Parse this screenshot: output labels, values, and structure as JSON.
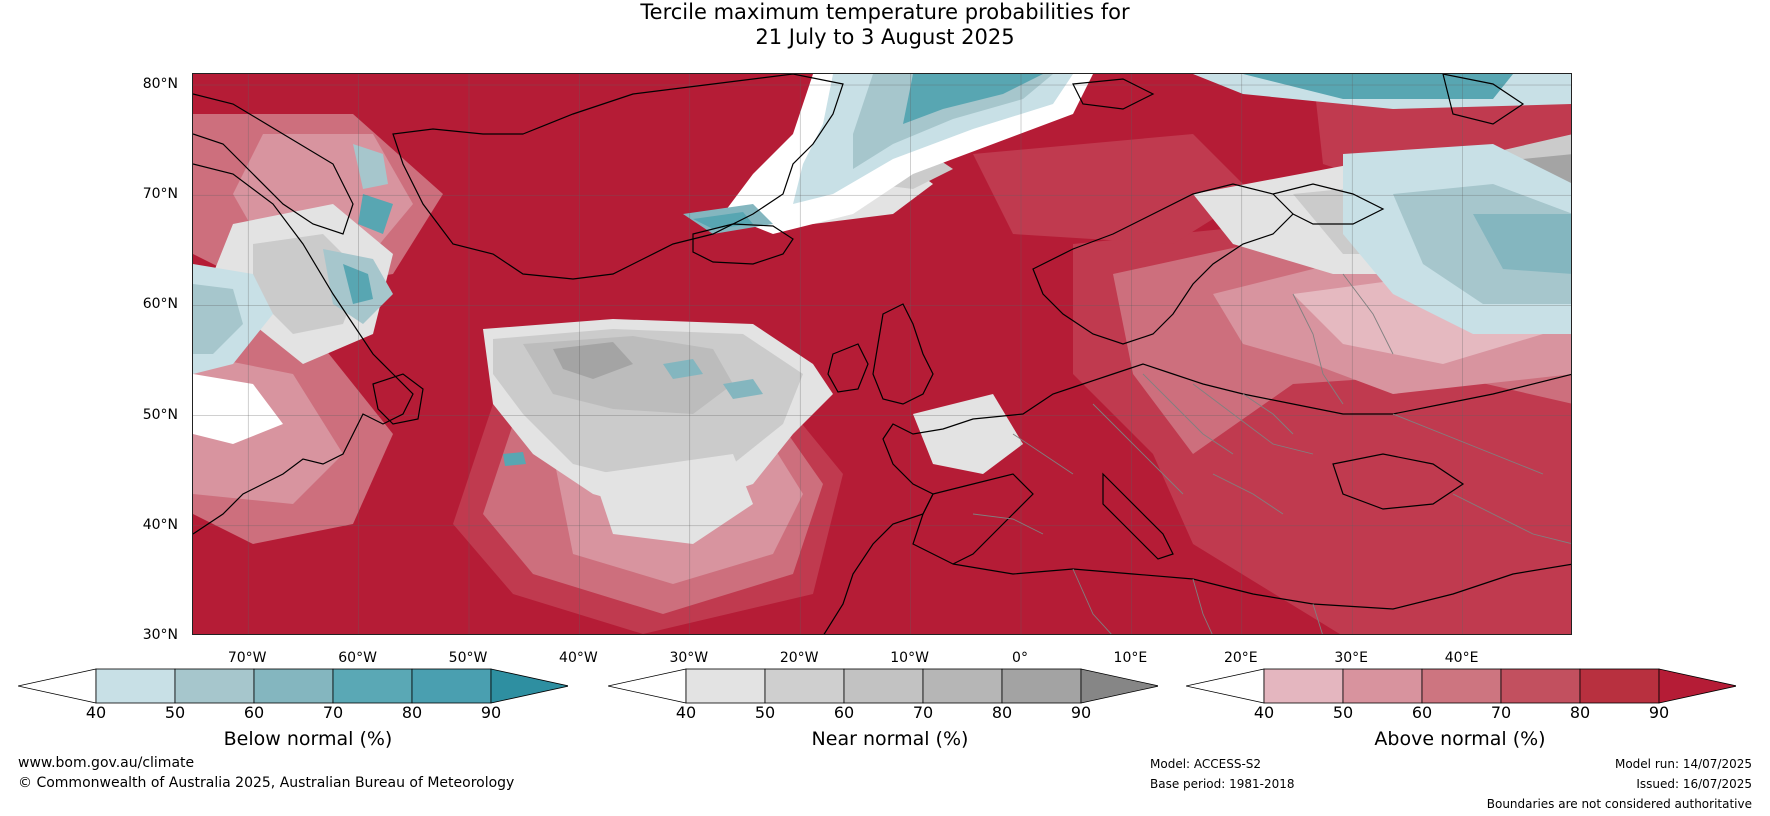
{
  "title_line1": "Tercile maximum temperature probabilities for",
  "title_line2": "21 July to 3 August 2025",
  "map": {
    "lat_labels": [
      "80°N",
      "70°N",
      "60°N",
      "50°N",
      "40°N",
      "30°N"
    ],
    "lon_labels": [
      "70°W",
      "60°W",
      "50°W",
      "40°W",
      "30°W",
      "20°W",
      "10°W",
      "0°",
      "10°E",
      "20°E",
      "30°E",
      "40°E"
    ],
    "lat_range": [
      30,
      81
    ],
    "lon_range": [
      -75,
      50
    ],
    "colors": {
      "above_90": "#b51c36",
      "above_80": "#c03a4f",
      "above_70": "#cd6f7d",
      "above_60": "#d8949f",
      "above_50": "#e5b9c0",
      "neutral": "#ffffff",
      "near_50": "#e3e3e3",
      "near_60": "#cbcbcb",
      "near_70": "#bcbcbc",
      "near_80": "#a4a4a4",
      "below_50": "#c8e0e6",
      "below_60": "#a6c6cc",
      "below_70": "#84b6bf",
      "below_80": "#58a6b2",
      "below_90": "#2e8fa1",
      "coastline": "#000000",
      "borders": "#808080"
    }
  },
  "legends": [
    {
      "name": "Below normal (%)",
      "ticks": [
        "40",
        "50",
        "60",
        "70",
        "80",
        "90"
      ],
      "colors": [
        "#ffffff",
        "#c8e0e6",
        "#a6c6cc",
        "#84b6bf",
        "#5aa8b5",
        "#4a9fb0",
        "#2e8fa1"
      ]
    },
    {
      "name": "Near normal (%)",
      "ticks": [
        "40",
        "50",
        "60",
        "70",
        "80",
        "90"
      ],
      "colors": [
        "#ffffff",
        "#e3e3e3",
        "#cfcfcf",
        "#c2c2c2",
        "#b6b6b6",
        "#a3a3a3",
        "#868686"
      ]
    },
    {
      "name": "Above normal (%)",
      "ticks": [
        "40",
        "50",
        "60",
        "70",
        "80",
        "90"
      ],
      "colors": [
        "#ffffff",
        "#e4b6bf",
        "#d8939e",
        "#cd7580",
        "#c2505f",
        "#b8303f",
        "#b51c36"
      ]
    }
  ],
  "footer": {
    "website": "www.bom.gov.au/climate",
    "copyright": "© Commonwealth of Australia 2025, Australian Bureau of Meteorology",
    "model": "Model: ACCESS-S2",
    "base_period": "Base period: 1981-2018",
    "model_run": "Model run: 14/07/2025",
    "issued": "Issued: 16/07/2025",
    "disclaimer": "Boundaries are not considered authoritative"
  }
}
